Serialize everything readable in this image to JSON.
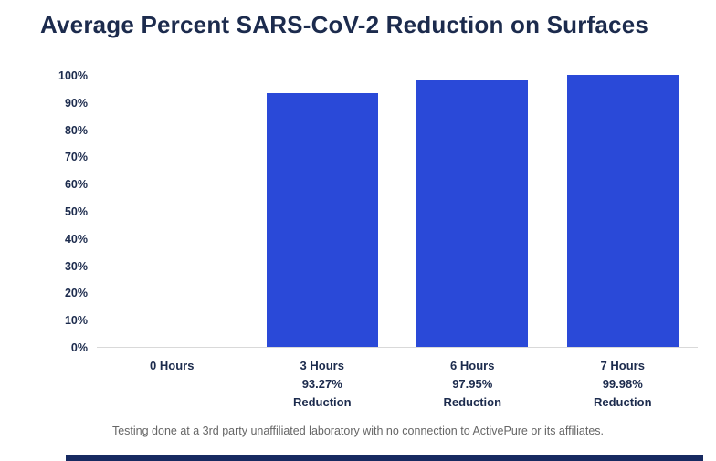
{
  "page": {
    "title": "Average Percent SARS-CoV-2 Reduction on Surfaces",
    "footnote": "Testing done at a 3rd party unaffiliated laboratory with no connection to ActivePure or its affiliates."
  },
  "colors": {
    "title_text": "#1c2b4d",
    "axis_text": "#1c2b4d",
    "bar": "#2a49d8",
    "baseline": "#d9d9d9",
    "footnote_text": "#666666",
    "bottom_strip": "#172a61"
  },
  "chart_data": {
    "type": "bar",
    "title": "Average Percent SARS-CoV-2 Reduction on Surfaces",
    "categories": [
      "0 Hours",
      "3 Hours",
      "6 Hours",
      "7 Hours"
    ],
    "values": [
      0,
      93.27,
      97.95,
      99.98
    ],
    "bar_labels": [
      [
        "0 Hours"
      ],
      [
        "3 Hours",
        "93.27%",
        "Reduction"
      ],
      [
        "6 Hours",
        "97.95%",
        "Reduction"
      ],
      [
        "7 Hours",
        "99.98%",
        "Reduction"
      ]
    ],
    "xlabel": "",
    "ylabel": "",
    "ylim": [
      0,
      100
    ],
    "ytick_step": 10,
    "ytick_suffix": "%",
    "grid": false,
    "legend": "none",
    "bar_color": "#2a49d8"
  }
}
